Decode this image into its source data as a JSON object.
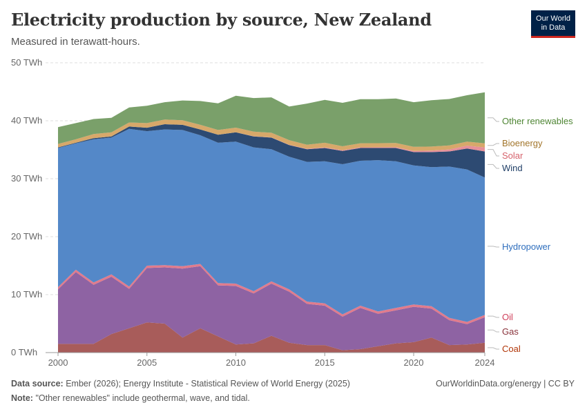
{
  "header": {
    "title": "Electricity production by source, New Zealand",
    "subtitle": "Measured in terawatt-hours."
  },
  "logo": {
    "line1": "Our World",
    "line2": "in Data"
  },
  "footer": {
    "source_label": "Data source:",
    "source_text": "Ember (2026); Energy Institute - Statistical Review of World Energy (2025)",
    "note_label": "Note:",
    "note_text": "\"Other renewables\" include geothermal, wave, and tidal.",
    "credit": "OurWorldinData.org/energy | CC BY"
  },
  "chart_data": {
    "type": "area",
    "stacked": true,
    "x": [
      2000,
      2001,
      2002,
      2003,
      2004,
      2005,
      2006,
      2007,
      2008,
      2009,
      2010,
      2011,
      2012,
      2013,
      2014,
      2015,
      2016,
      2017,
      2018,
      2019,
      2020,
      2021,
      2022,
      2023,
      2024
    ],
    "xlim": [
      1999.3,
      2024
    ],
    "xticks": [
      2000,
      2005,
      2010,
      2015,
      2020,
      2024
    ],
    "ylim": [
      0,
      50
    ],
    "yticks": [
      0,
      10,
      20,
      30,
      40,
      50
    ],
    "ytick_labels": [
      "0 TWh",
      "10 TWh",
      "20 TWh",
      "30 TWh",
      "40 TWh",
      "50 TWh"
    ],
    "grid": "horizontal dashed",
    "legend": "right (inline labels)",
    "series": [
      {
        "name": "Coal",
        "color": "#b13507",
        "fill": "#a85c5a",
        "values": [
          1.5,
          1.5,
          1.5,
          3.2,
          4.2,
          5.2,
          5.0,
          2.6,
          4.2,
          2.8,
          1.4,
          1.6,
          2.9,
          1.7,
          1.3,
          1.3,
          0.4,
          0.6,
          1.1,
          1.6,
          1.8,
          2.6,
          1.3,
          1.4,
          1.7
        ]
      },
      {
        "name": "Gas",
        "color": "#883039",
        "fill": "#8e63a3",
        "values": [
          9.4,
          12.4,
          10.2,
          9.9,
          6.8,
          9.4,
          9.7,
          11.9,
          10.7,
          8.8,
          10.1,
          8.6,
          9.0,
          8.8,
          7.1,
          6.8,
          5.8,
          7.1,
          5.6,
          5.7,
          6.1,
          5.0,
          4.3,
          3.5,
          4.4
        ]
      },
      {
        "name": "Oil",
        "color": "#cf3e59",
        "fill": "#e17b8c",
        "values": [
          0.4,
          0.4,
          0.4,
          0.4,
          0.4,
          0.4,
          0.4,
          0.4,
          0.4,
          0.4,
          0.4,
          0.4,
          0.4,
          0.4,
          0.4,
          0.4,
          0.4,
          0.4,
          0.4,
          0.4,
          0.4,
          0.4,
          0.4,
          0.4,
          0.4
        ]
      },
      {
        "name": "Hydropower",
        "color": "#2e6ebd",
        "fill": "#5488c8",
        "values": [
          24.0,
          21.8,
          24.7,
          23.6,
          27.2,
          23.2,
          23.4,
          23.5,
          22.2,
          24.2,
          24.5,
          24.8,
          22.8,
          22.9,
          24.1,
          24.5,
          25.9,
          25.0,
          26.1,
          25.3,
          24.0,
          24.0,
          26.1,
          26.3,
          23.7
        ]
      },
      {
        "name": "Wind",
        "color": "#1f3e66",
        "fill": "#2d4a72",
        "values": [
          0.1,
          0.1,
          0.2,
          0.2,
          0.4,
          0.6,
          0.9,
          0.9,
          1.0,
          1.4,
          1.6,
          1.9,
          2.0,
          2.0,
          2.2,
          2.3,
          2.3,
          2.2,
          2.1,
          2.3,
          2.3,
          2.6,
          2.6,
          3.6,
          4.5
        ]
      },
      {
        "name": "Solar",
        "color": "#d6616b",
        "fill": "#e6909a",
        "values": [
          0,
          0,
          0,
          0,
          0,
          0,
          0,
          0,
          0,
          0,
          0.01,
          0.02,
          0.03,
          0.05,
          0.07,
          0.1,
          0.1,
          0.12,
          0.13,
          0.15,
          0.2,
          0.25,
          0.35,
          0.5,
          0.7
        ]
      },
      {
        "name": "Bioenergy",
        "color": "#a2752a",
        "fill": "#d7a86a",
        "values": [
          0.6,
          0.6,
          0.7,
          0.7,
          0.7,
          0.8,
          0.8,
          0.8,
          0.8,
          0.8,
          0.8,
          0.8,
          0.8,
          0.8,
          0.7,
          0.8,
          0.7,
          0.7,
          0.7,
          0.7,
          0.7,
          0.7,
          0.7,
          0.7,
          0.7
        ]
      },
      {
        "name": "Other renewables",
        "color": "#4e8533",
        "fill": "#7aa06a",
        "values": [
          2.9,
          2.8,
          2.6,
          2.5,
          2.6,
          3.0,
          3.0,
          3.4,
          4.1,
          4.6,
          5.5,
          5.8,
          6.1,
          5.8,
          7.1,
          7.4,
          7.5,
          7.6,
          7.6,
          7.7,
          7.7,
          8.0,
          8.0,
          8.0,
          8.8
        ]
      }
    ]
  }
}
